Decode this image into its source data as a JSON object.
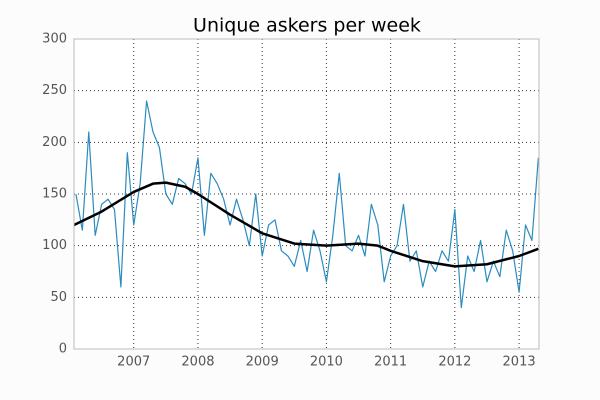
{
  "chart_data": {
    "type": "line",
    "title": "Unique askers per week",
    "xlim": [
      2006.07,
      2013.31
    ],
    "xticks": [
      2007,
      2008,
      2009,
      2010,
      2011,
      2012,
      2013
    ],
    "ylim": [
      0,
      300
    ],
    "yticks": [
      0,
      50,
      100,
      150,
      200,
      250,
      300
    ],
    "grid": true,
    "series": [
      {
        "color": "#2b8cbe",
        "linewidth": 1.2,
        "x": [
          2006.1,
          2006.2,
          2006.3,
          2006.4,
          2006.5,
          2006.6,
          2006.7,
          2006.8,
          2006.9,
          2007.0,
          2007.1,
          2007.2,
          2007.3,
          2007.4,
          2007.5,
          2007.6,
          2007.7,
          2007.8,
          2007.9,
          2008.0,
          2008.1,
          2008.2,
          2008.3,
          2008.4,
          2008.5,
          2008.6,
          2008.7,
          2008.8,
          2008.9,
          2009.0,
          2009.1,
          2009.2,
          2009.3,
          2009.4,
          2009.5,
          2009.6,
          2009.7,
          2009.8,
          2009.9,
          2010.0,
          2010.1,
          2010.2,
          2010.3,
          2010.4,
          2010.5,
          2010.6,
          2010.7,
          2010.8,
          2010.9,
          2011.0,
          2011.1,
          2011.2,
          2011.3,
          2011.4,
          2011.5,
          2011.6,
          2011.7,
          2011.8,
          2011.9,
          2012.0,
          2012.1,
          2012.2,
          2012.3,
          2012.4,
          2012.5,
          2012.6,
          2012.7,
          2012.8,
          2012.9,
          2013.0,
          2013.1,
          2013.2,
          2013.3
        ],
        "values": [
          150,
          115,
          210,
          110,
          140,
          145,
          135,
          60,
          190,
          120,
          160,
          240,
          210,
          195,
          150,
          140,
          165,
          160,
          150,
          185,
          110,
          170,
          160,
          145,
          120,
          145,
          125,
          100,
          150,
          90,
          120,
          125,
          95,
          90,
          80,
          105,
          75,
          115,
          95,
          65,
          110,
          170,
          100,
          95,
          110,
          90,
          140,
          120,
          65,
          90,
          100,
          140,
          85,
          95,
          60,
          85,
          75,
          95,
          85,
          135,
          40,
          90,
          75,
          105,
          65,
          85,
          70,
          115,
          95,
          55,
          120,
          105,
          185
        ]
      },
      {
        "color": "#000000",
        "linewidth": 2.5,
        "x": [
          2006.07,
          2006.5,
          2007.0,
          2007.3,
          2007.5,
          2007.8,
          2008.0,
          2008.5,
          2009.0,
          2009.5,
          2010.0,
          2010.5,
          2010.8,
          2011.0,
          2011.5,
          2012.0,
          2012.5,
          2013.0,
          2013.3
        ],
        "values": [
          120,
          133,
          152,
          160,
          161,
          157,
          150,
          130,
          112,
          102,
          100,
          102,
          100,
          95,
          85,
          80,
          82,
          90,
          97
        ]
      }
    ]
  }
}
